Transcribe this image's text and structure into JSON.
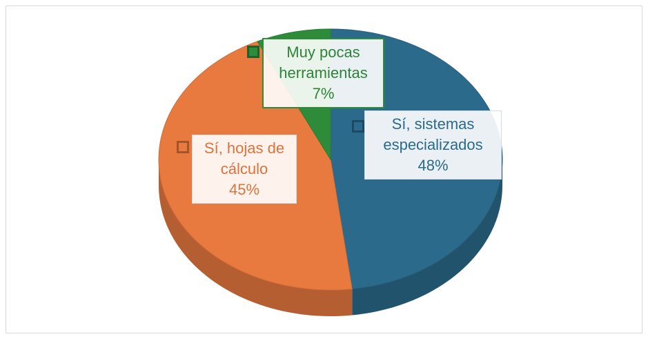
{
  "chart_data": {
    "type": "pie",
    "categories": [
      "Sí, sistemas especializados",
      "Sí, hojas de cálculo",
      "Muy pocas herramientas"
    ],
    "values": [
      48,
      45,
      7
    ],
    "value_labels": [
      "48%",
      "45%",
      "7%"
    ],
    "colors": [
      "#2b6a8a",
      "#e8793f",
      "#2e8b3a"
    ],
    "start_angle": 0,
    "direction": "clockwise",
    "three_d": true
  }
}
